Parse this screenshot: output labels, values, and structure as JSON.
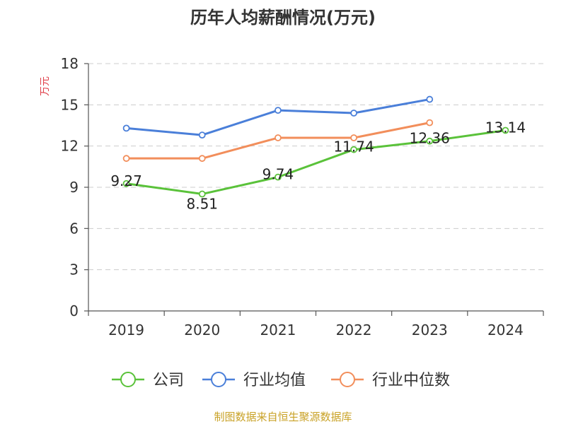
{
  "chart_data": {
    "type": "line",
    "title": "历年人均薪酬情况(万元)",
    "ylabel": "万元",
    "categories": [
      "2019",
      "2020",
      "2021",
      "2022",
      "2023",
      "2024"
    ],
    "ylim": [
      0,
      18
    ],
    "yticks": [
      0,
      3,
      6,
      9,
      12,
      15,
      18
    ],
    "grid": true,
    "legend_position": "bottom",
    "series": [
      {
        "name": "公司",
        "color": "#5ac23a",
        "values": [
          9.27,
          8.51,
          9.74,
          11.74,
          12.36,
          13.14
        ],
        "labels": [
          "9.27",
          "8.51",
          "9.74",
          "11.74",
          "12.36",
          "13.14"
        ]
      },
      {
        "name": "行业均值",
        "color": "#4a7fd9",
        "values": [
          13.3,
          12.8,
          14.6,
          14.4,
          15.4,
          null
        ]
      },
      {
        "name": "行业中位数",
        "color": "#f28e5b",
        "values": [
          11.1,
          11.1,
          12.6,
          12.6,
          13.7,
          null
        ]
      }
    ]
  },
  "source": "制图数据来自恒生聚源数据库",
  "colors": {
    "ylabel": "#e0404a",
    "source": "#c9a227",
    "axis": "#555555",
    "grid": "#cccccc"
  }
}
